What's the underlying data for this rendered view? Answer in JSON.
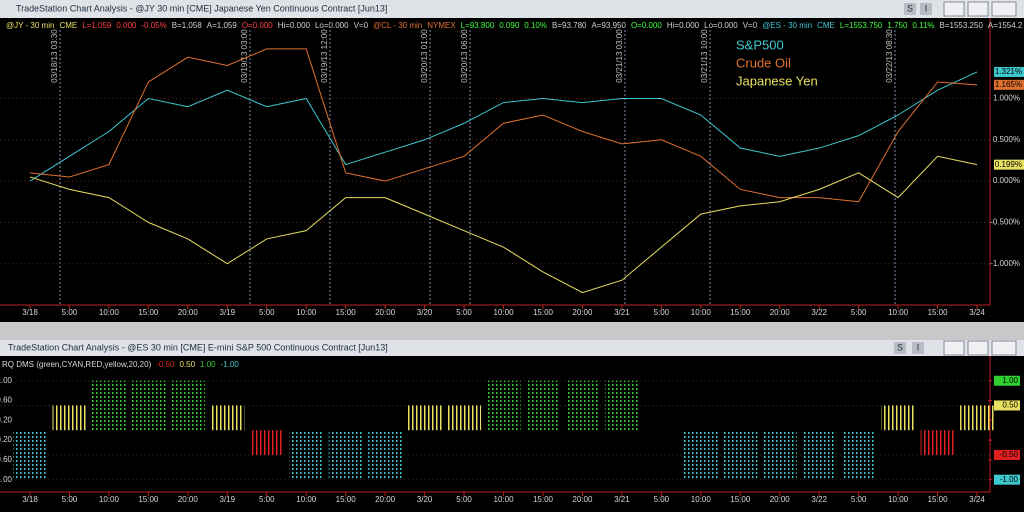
{
  "windows": [
    {
      "title": "TradeStation Chart Analysis - @JY 30 min [CME] Japanese Yen Continuous Contract [Jun13]",
      "buttons": [
        "S",
        "I"
      ]
    },
    {
      "title": "TradeStation Chart Analysis - @ES 30 min [CME] E-mini S&P 500 Continuous Contract [Jun13]",
      "buttons": [
        "S",
        "I"
      ]
    }
  ],
  "info": [
    {
      "text": "@JY - 30 min",
      "color": "#e8e060"
    },
    {
      "text": "CME",
      "color": "#e8e060"
    },
    {
      "text": "L=1.059",
      "color": "#ff4040"
    },
    {
      "text": "0.000",
      "color": "#ff4040"
    },
    {
      "text": "-0.05%",
      "color": "#ff4040"
    },
    {
      "text": "B=1.058",
      "color": "#d0d0d0"
    },
    {
      "text": "A=1.059",
      "color": "#d0d0d0"
    },
    {
      "text": "O=0.000",
      "color": "#ff4040"
    },
    {
      "text": "Hi=0.000",
      "color": "#d0d0d0"
    },
    {
      "text": "Lo=0.000",
      "color": "#d0d0d0"
    },
    {
      "text": "V=0",
      "color": "#d0d0d0"
    },
    {
      "text": "@CL - 30 min",
      "color": "#e07030"
    },
    {
      "text": "NYMEX",
      "color": "#e07030"
    },
    {
      "text": "L=93.800",
      "color": "#40ff40"
    },
    {
      "text": "0.090",
      "color": "#40ff40"
    },
    {
      "text": "0.10%",
      "color": "#40ff40"
    },
    {
      "text": "B=93.780",
      "color": "#d0d0d0"
    },
    {
      "text": "A=93.950",
      "color": "#d0d0d0"
    },
    {
      "text": "O=0.000",
      "color": "#40ff40"
    },
    {
      "text": "Hi=0.000",
      "color": "#d0d0d0"
    },
    {
      "text": "Lo=0.000",
      "color": "#d0d0d0"
    },
    {
      "text": "V=0",
      "color": "#d0d0d0"
    },
    {
      "text": "@ES - 30 min",
      "color": "#3ec8d0"
    },
    {
      "text": "CME",
      "color": "#3ec8d0"
    },
    {
      "text": "L=1553.750",
      "color": "#40ff40"
    },
    {
      "text": "1.750",
      "color": "#40ff40"
    },
    {
      "text": "0.11%",
      "color": "#40ff40"
    },
    {
      "text": "B=1553.250",
      "color": "#d0d0d0"
    },
    {
      "text": "A=1554.2",
      "color": "#d0d0d0"
    }
  ],
  "events": [
    "03/18/13 03:30",
    "03/19/13 03:00",
    "03/19/13 12:00",
    "03/20/13 01:00",
    "03/20/13 06:00",
    "03/21/13 03:00",
    "03/21/13 10:00",
    "03/22/13 08:30"
  ],
  "chart_data": [
    {
      "type": "line",
      "categories": [
        "3/18",
        "5:00",
        "10:00",
        "15:00",
        "20:00",
        "3/19",
        "5:00",
        "10:00",
        "15:00",
        "20:00",
        "3/20",
        "5:00",
        "10:00",
        "15:00",
        "20:00",
        "3/21",
        "5:00",
        "10:00",
        "15:00",
        "20:00",
        "3/22",
        "5:00",
        "10:00",
        "15:00",
        "3/24"
      ],
      "ylim": [
        -1.5,
        1.95
      ],
      "yticks": [
        {
          "value": -1,
          "label": "-1.000%"
        },
        {
          "value": -0.5,
          "label": "-0.500%"
        },
        {
          "value": 0,
          "label": "0.000%"
        },
        {
          "value": 0.5,
          "label": "0.500%"
        },
        {
          "value": 1,
          "label": "1.000%"
        }
      ],
      "series": [
        {
          "name": "S&P500",
          "color": "#3ec8d0",
          "values": [
            0.0,
            0.3,
            0.6,
            1.0,
            0.9,
            1.1,
            0.9,
            1.0,
            0.2,
            0.35,
            0.5,
            0.7,
            0.95,
            1.0,
            0.95,
            1.0,
            1.0,
            0.8,
            0.4,
            0.3,
            0.4,
            0.55,
            0.8,
            1.1,
            1.321
          ],
          "value_labels": [
            null,
            null,
            null,
            null,
            null,
            null,
            null,
            null,
            null,
            null,
            null,
            null,
            null,
            null,
            null,
            null,
            null,
            null,
            null,
            null,
            null,
            null,
            null,
            null,
            "1.321%"
          ]
        },
        {
          "name": "Crude Oil",
          "color": "#e07030",
          "values": [
            0.1,
            0.05,
            0.2,
            1.2,
            1.5,
            1.4,
            1.6,
            1.6,
            0.1,
            0.0,
            0.15,
            0.3,
            0.7,
            0.8,
            0.6,
            0.45,
            0.5,
            0.3,
            -0.1,
            -0.2,
            -0.2,
            -0.25,
            0.6,
            1.2,
            1.165
          ],
          "value_labels": [
            null,
            null,
            null,
            null,
            null,
            null,
            null,
            null,
            null,
            null,
            null,
            null,
            null,
            null,
            null,
            null,
            null,
            null,
            null,
            null,
            null,
            null,
            null,
            null,
            "1.165%"
          ]
        },
        {
          "name": "Japanese Yen",
          "color": "#e8e060",
          "values": [
            0.05,
            -0.1,
            -0.2,
            -0.5,
            -0.7,
            -1.0,
            -0.7,
            -0.6,
            -0.2,
            -0.2,
            -0.4,
            -0.6,
            -0.8,
            -1.1,
            -1.35,
            -1.2,
            -0.8,
            -0.4,
            -0.3,
            -0.25,
            -0.1,
            0.1,
            -0.2,
            0.3,
            0.199
          ],
          "value_labels": [
            null,
            null,
            null,
            null,
            null,
            null,
            null,
            null,
            null,
            null,
            null,
            null,
            null,
            null,
            null,
            null,
            null,
            null,
            null,
            null,
            null,
            null,
            null,
            null,
            "0.199%"
          ]
        }
      ]
    },
    {
      "type": "bar",
      "title": "RQ  DMS (green,CYAN,RED,yellow,20,20)",
      "categories": [
        "3/18",
        "5:00",
        "10:00",
        "15:00",
        "20:00",
        "3/19",
        "5:00",
        "10:00",
        "15:00",
        "20:00",
        "3/20",
        "5:00",
        "10:00",
        "15:00",
        "20:00",
        "3/21",
        "5:00",
        "10:00",
        "15:00",
        "20:00",
        "3/22",
        "5:00",
        "10:00",
        "15:00",
        "3/24"
      ],
      "values": [
        -1,
        0.5,
        1,
        1,
        1,
        0.5,
        -0.5,
        -1,
        -1,
        -1,
        0.5,
        0.5,
        1,
        1,
        1,
        1,
        null,
        -1,
        -1,
        -1,
        -1,
        -1,
        0.5,
        -0.5,
        0.5
      ],
      "levels": [
        {
          "value": -0.5,
          "label": "-0.50",
          "color": "#e02020"
        },
        {
          "value": 0.5,
          "label": "0.50",
          "color": "#e8e060"
        },
        {
          "value": 1,
          "label": "1.00",
          "color": "#30d030"
        },
        {
          "value": -1,
          "label": "-1.00",
          "color": "#3ec8d0"
        }
      ],
      "ylim": [
        -1.35,
        1.46
      ],
      "yticks": [
        {
          "value": 1,
          "label": "1.00"
        },
        {
          "value": 0.6,
          "label": "0.60"
        },
        {
          "value": 0.2,
          "label": "0.20"
        },
        {
          "value": -0.2,
          "label": "-0.20"
        },
        {
          "value": -0.6,
          "label": "-0.60"
        },
        {
          "value": -1,
          "label": "-1.00"
        }
      ]
    }
  ]
}
